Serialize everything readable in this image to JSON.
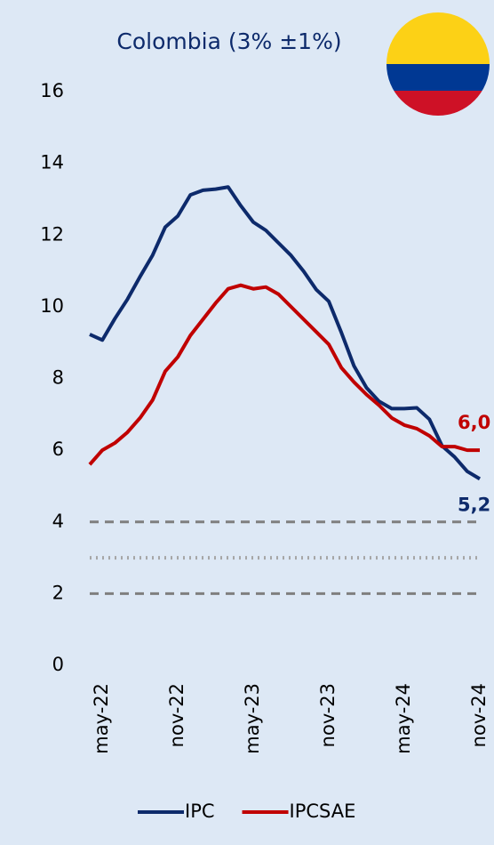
{
  "chart_data": {
    "type": "line",
    "title": "Colombia (3% ±1%)",
    "categories": [
      null,
      "may-22",
      null,
      null,
      null,
      null,
      null,
      "nov-22",
      null,
      null,
      null,
      null,
      null,
      "may-23",
      null,
      null,
      null,
      null,
      null,
      "nov-23",
      null,
      null,
      null,
      null,
      null,
      "may-24",
      null,
      null,
      null,
      null,
      null,
      "nov-24"
    ],
    "series": [
      {
        "name": "IPC",
        "color": "#0d2a6b",
        "values": [
          9.23,
          9.07,
          9.67,
          10.21,
          10.84,
          11.44,
          12.22,
          12.53,
          13.12,
          13.25,
          13.28,
          13.34,
          12.82,
          12.36,
          12.13,
          11.78,
          11.43,
          10.99,
          10.48,
          10.15,
          9.28,
          8.35,
          7.74,
          7.36,
          7.16,
          7.16,
          7.18,
          6.86,
          6.12,
          5.81,
          5.41,
          5.2
        ],
        "last_label": "5,2"
      },
      {
        "name": "IPCSAE",
        "color": "#c00000",
        "values": [
          5.6,
          6.0,
          6.2,
          6.5,
          6.9,
          7.4,
          8.2,
          8.6,
          9.2,
          9.65,
          10.1,
          10.5,
          10.6,
          10.5,
          10.55,
          10.35,
          10.0,
          9.65,
          9.3,
          8.95,
          8.3,
          7.9,
          7.55,
          7.25,
          6.9,
          6.7,
          6.6,
          6.4,
          6.1,
          6.1,
          6.0,
          6.0
        ],
        "last_label": "6,0"
      }
    ],
    "ylim": [
      0,
      16
    ],
    "yticks": [
      0,
      2,
      4,
      6,
      8,
      10,
      12,
      14,
      16
    ],
    "reference_lines": [
      {
        "value": 4,
        "style": "dashed"
      },
      {
        "value": 3,
        "style": "dotted"
      },
      {
        "value": 2,
        "style": "dashed"
      }
    ],
    "legend": "bottom"
  }
}
